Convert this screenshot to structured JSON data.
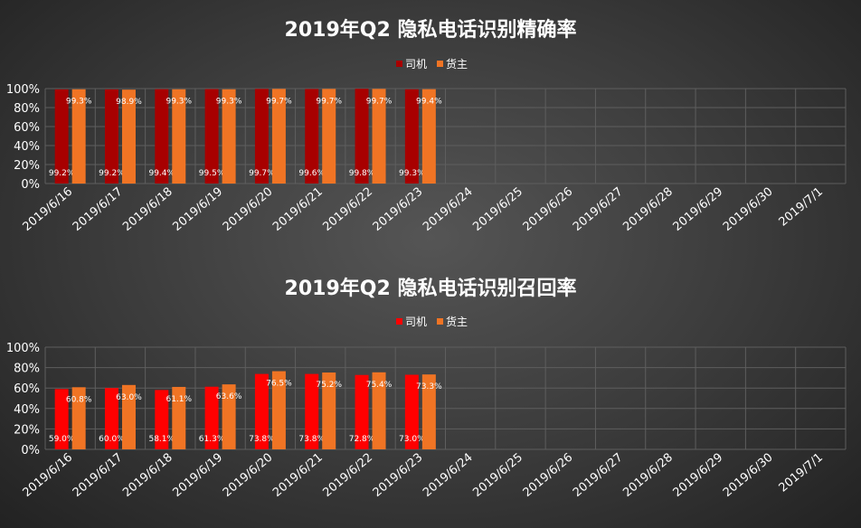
{
  "chart_data": [
    {
      "type": "bar",
      "title": "2019年Q2 隐私电话识别精确率",
      "categories": [
        "2019/6/16",
        "2019/6/17",
        "2019/6/18",
        "2019/6/19",
        "2019/6/20",
        "2019/6/21",
        "2019/6/22",
        "2019/6/23",
        "2019/6/24",
        "2019/6/25",
        "2019/6/26",
        "2019/6/27",
        "2019/6/28",
        "2019/6/29",
        "2019/6/30",
        "2019/7/1"
      ],
      "series": [
        {
          "name": "司机",
          "color": "#A80000",
          "values": [
            99.2,
            99.2,
            99.4,
            99.5,
            99.7,
            99.6,
            99.8,
            99.3,
            null,
            null,
            null,
            null,
            null,
            null,
            null,
            null
          ],
          "labels": [
            "99.2%",
            "99.2%",
            "99.4%",
            "99.5%",
            "99.7%",
            "99.6%",
            "99.8%",
            "99.3%"
          ]
        },
        {
          "name": "货主",
          "color": "#F07424",
          "values": [
            99.3,
            98.9,
            99.3,
            99.3,
            99.7,
            99.7,
            99.7,
            99.4,
            null,
            null,
            null,
            null,
            null,
            null,
            null,
            null
          ],
          "labels": [
            "99.3%",
            "98.9%",
            "99.3%",
            "99.3%",
            "99.7%",
            "99.7%",
            "99.7%",
            "99.4%"
          ]
        }
      ],
      "yticks": [
        "0%",
        "20%",
        "40%",
        "60%",
        "80%",
        "100%"
      ],
      "ylim": [
        0,
        100
      ],
      "legend": "top-center",
      "grid": true
    },
    {
      "type": "bar",
      "title": "2019年Q2 隐私电话识别召回率",
      "categories": [
        "2019/6/16",
        "2019/6/17",
        "2019/6/18",
        "2019/6/19",
        "2019/6/20",
        "2019/6/21",
        "2019/6/22",
        "2019/6/23",
        "2019/6/24",
        "2019/6/25",
        "2019/6/26",
        "2019/6/27",
        "2019/6/28",
        "2019/6/29",
        "2019/6/30",
        "2019/7/1"
      ],
      "series": [
        {
          "name": "司机",
          "color": "#FF0000",
          "values": [
            59.0,
            60.0,
            58.1,
            61.3,
            73.8,
            73.8,
            72.8,
            73.0,
            null,
            null,
            null,
            null,
            null,
            null,
            null,
            null
          ],
          "labels": [
            "59.0%",
            "60.0%",
            "58.1%",
            "61.3%",
            "73.8%",
            "73.8%",
            "72.8%",
            "73.0%"
          ]
        },
        {
          "name": "货主",
          "color": "#F07424",
          "values": [
            60.8,
            63.0,
            61.1,
            63.6,
            76.5,
            75.2,
            75.4,
            73.3,
            null,
            null,
            null,
            null,
            null,
            null,
            null,
            null
          ],
          "labels": [
            "60.8%",
            "63.0%",
            "61.1%",
            "63.6%",
            "76.5%",
            "75.2%",
            "75.4%",
            "73.3%"
          ]
        }
      ],
      "yticks": [
        "0%",
        "20%",
        "40%",
        "60%",
        "80%",
        "100%"
      ],
      "ylim": [
        0,
        100
      ],
      "legend": "top-center",
      "grid": true
    }
  ]
}
